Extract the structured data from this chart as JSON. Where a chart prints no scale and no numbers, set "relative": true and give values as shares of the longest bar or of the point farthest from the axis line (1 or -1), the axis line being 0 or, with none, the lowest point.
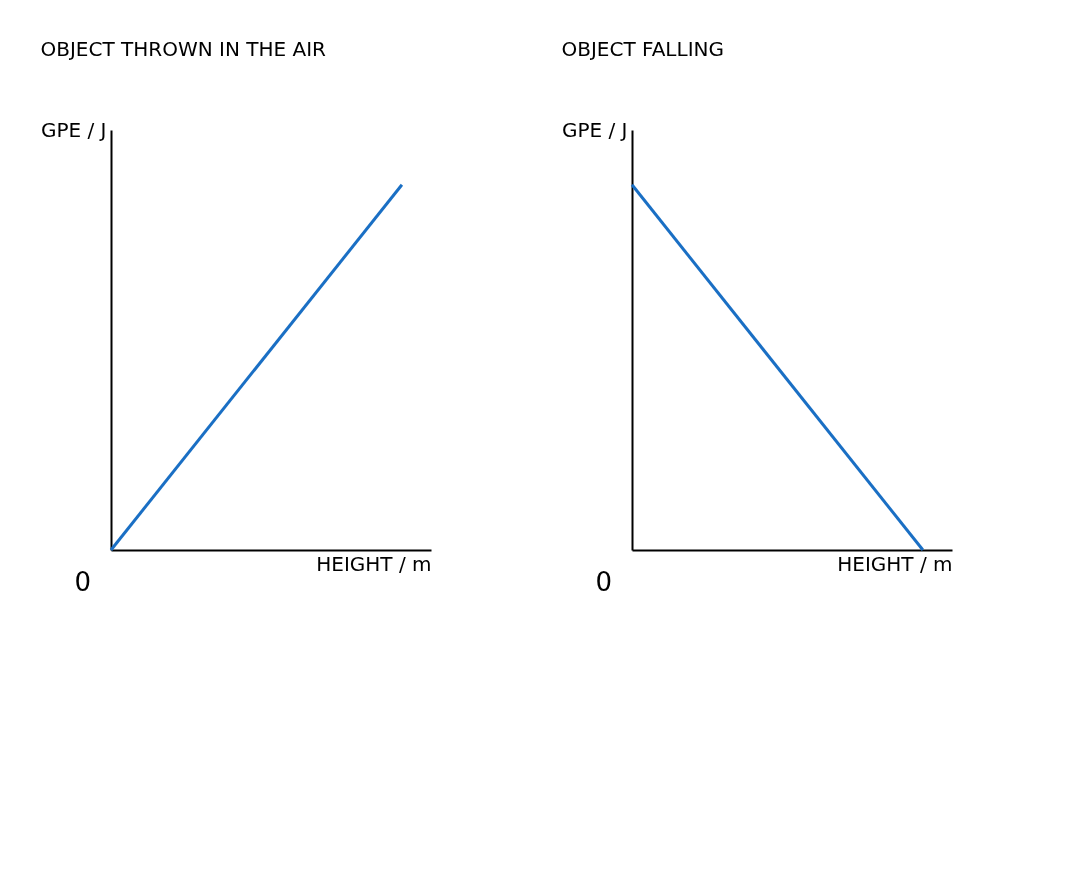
{
  "chart_data": [
    {
      "type": "line",
      "title": "OBJECT THROWN IN THE AIR",
      "xlabel": "HEIGHT / m",
      "ylabel": "GPE / J",
      "relative": true,
      "categories": [
        null,
        null
      ],
      "annotations": [
        "0"
      ],
      "grid": false,
      "legend": false,
      "series": [
        {
          "color": "#1a6fc4",
          "values": [
            0,
            1
          ]
        }
      ]
    },
    {
      "type": "line",
      "title": "OBJECT FALLING",
      "xlabel": "HEIGHT / m",
      "ylabel": "GPE / J",
      "relative": true,
      "categories": [
        null,
        null
      ],
      "annotations": [
        "0"
      ],
      "grid": false,
      "legend": false,
      "series": [
        {
          "color": "#1a6fc4",
          "values": [
            1,
            0
          ]
        }
      ]
    }
  ]
}
